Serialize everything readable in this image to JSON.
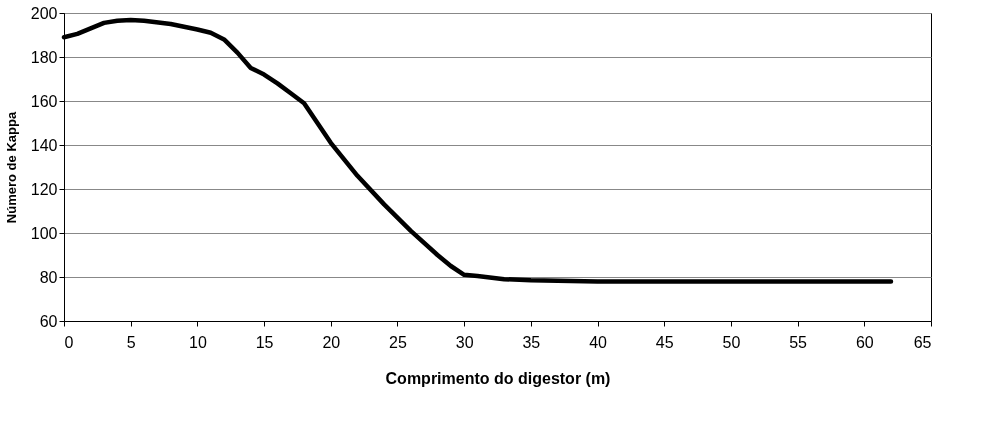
{
  "chart_data": {
    "type": "line",
    "xlabel": "Comprimento do digestor (m)",
    "ylabel": "Número de Kappa",
    "x": [
      0,
      1,
      2,
      3,
      4,
      5,
      6,
      8,
      10,
      11,
      12,
      13,
      14,
      15,
      16,
      17,
      18,
      19,
      20,
      22,
      24,
      26,
      28,
      29,
      30,
      31,
      33,
      35,
      40,
      50,
      62
    ],
    "series": [
      {
        "color": "#000000",
        "values": [
          189,
          190.5,
          193,
          195.5,
          196.5,
          196.8,
          196.5,
          195,
          192.5,
          191,
          188,
          182,
          175,
          172,
          168,
          163.5,
          159,
          150,
          141,
          126,
          113,
          101,
          90,
          85,
          81,
          80.5,
          79,
          78.5,
          78,
          78,
          78
        ]
      }
    ],
    "xlim": [
      0,
      65
    ],
    "xticks": [
      0,
      5,
      10,
      15,
      20,
      25,
      30,
      35,
      40,
      45,
      50,
      55,
      60,
      65
    ],
    "ylim": [
      60,
      200
    ],
    "yticks": [
      60,
      80,
      100,
      120,
      140,
      160,
      180,
      200
    ],
    "grid": "y",
    "marker": "none",
    "line_style": "solid"
  }
}
